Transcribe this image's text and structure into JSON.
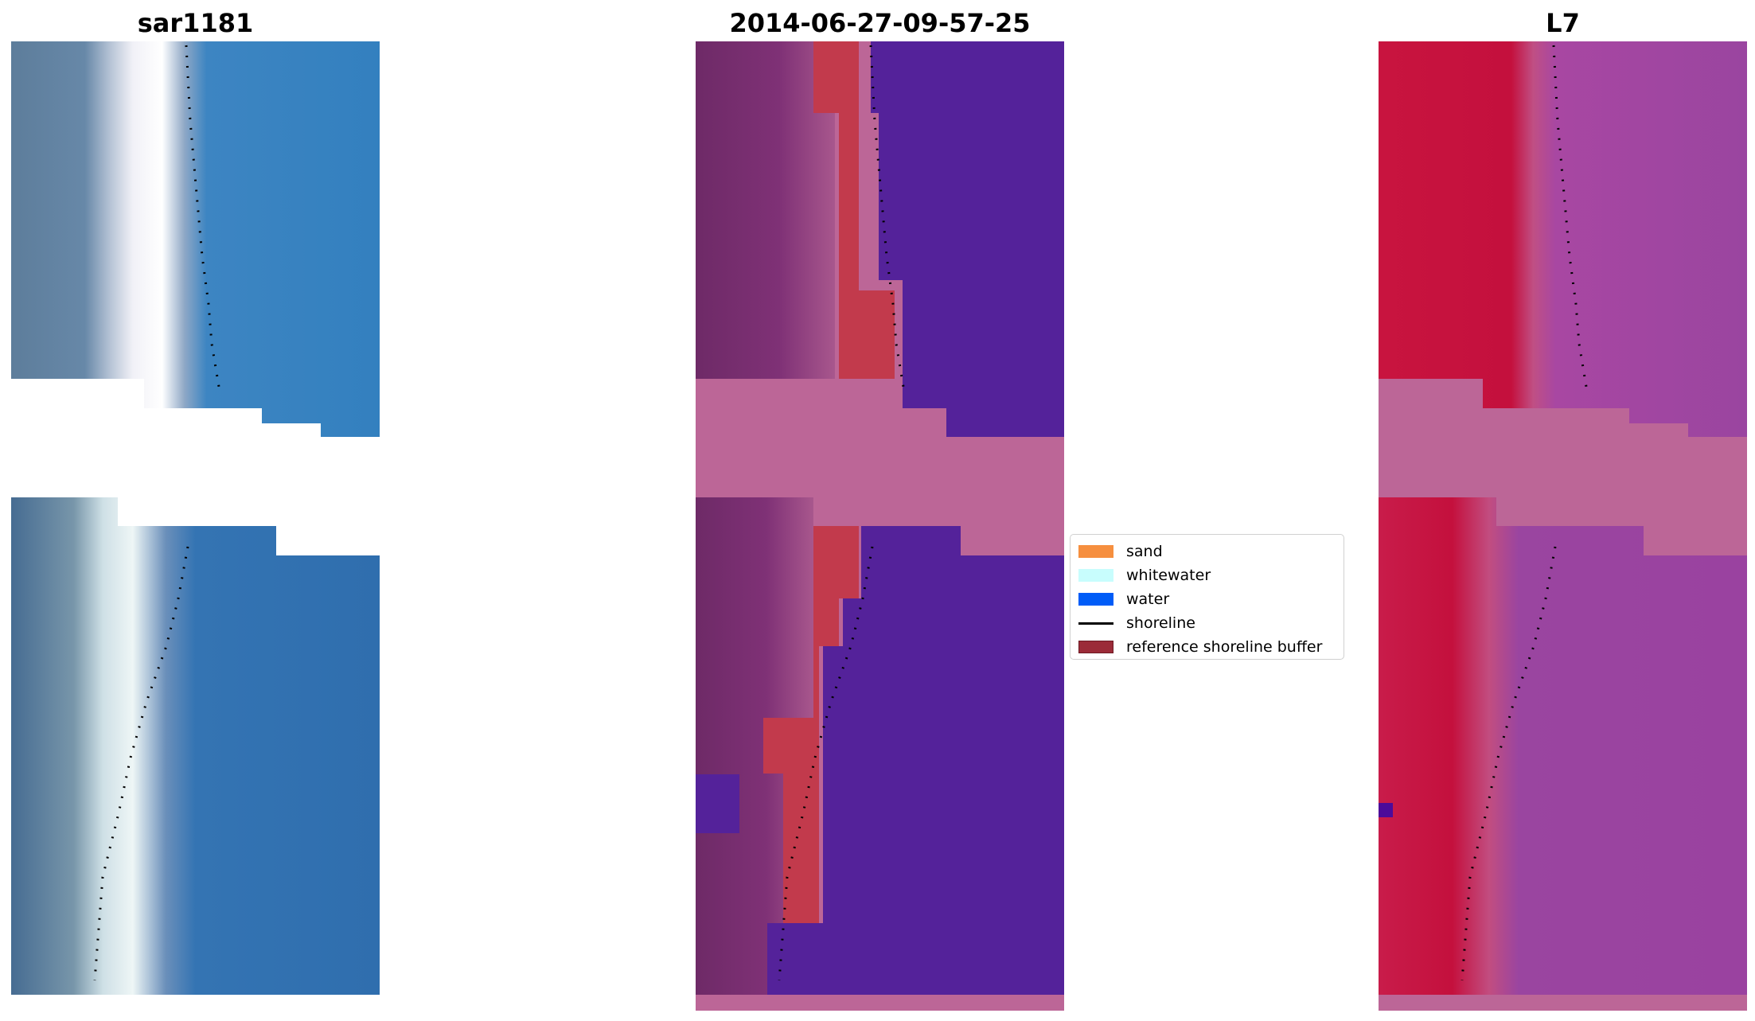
{
  "panels": [
    {
      "title": "sar1181",
      "kind": "rgb"
    },
    {
      "title": "2014-06-27-09-57-25",
      "kind": "classified"
    },
    {
      "title": "L7",
      "kind": "mndwi"
    }
  ],
  "legend": {
    "items": [
      {
        "label": "sand",
        "color": "#f68f3f",
        "type": "patch"
      },
      {
        "label": "whitewater",
        "color": "#c8fdfd",
        "type": "patch"
      },
      {
        "label": "water",
        "color": "#005cf7",
        "type": "patch"
      },
      {
        "label": "shoreline",
        "color": "#000000",
        "type": "line"
      },
      {
        "label": "reference shoreline buffer",
        "color": "#9b2b38",
        "type": "patch"
      }
    ]
  },
  "colors": {
    "rgb_land": "#5f7f9d",
    "rgb_sand": "#e8ecf4",
    "rgb_water": "#3681c0",
    "class_land": "#7a2d70",
    "class_buffer": "#c23a4c",
    "class_water": "#54229a",
    "nodata": "#bc6697",
    "mndwi_land": "#c8103e",
    "mndwi_water": "#9a42a0"
  }
}
